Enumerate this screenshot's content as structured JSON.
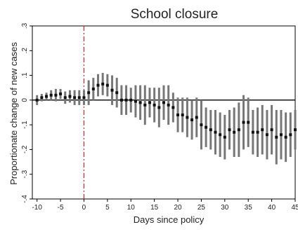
{
  "chart_data": {
    "type": "scatter",
    "title": "School closure",
    "xlabel": "Days since policy",
    "ylabel": "Proportionate change of new cases",
    "xlim": [
      -11,
      45
    ],
    "ylim": [
      -0.4,
      0.3
    ],
    "x_ticks": [
      -10,
      -5,
      0,
      5,
      10,
      15,
      20,
      25,
      30,
      35,
      40,
      45
    ],
    "y_ticks": [
      -0.4,
      -0.3,
      -0.2,
      -0.1,
      0,
      0.1,
      0.2,
      0.3
    ],
    "x_tick_labels": [
      "-10",
      "-5",
      "0",
      "5",
      "10",
      "15",
      "20",
      "25",
      "30",
      "35",
      "40",
      "45"
    ],
    "y_tick_labels": [
      "-.4",
      "-.3",
      "-.2",
      "-.1",
      "0",
      ".1",
      ".2",
      ".3"
    ],
    "policy_line_x": 0,
    "reference_line_y": 0,
    "grid": false,
    "colors": {
      "points": "#111111",
      "error_bars": "#777777",
      "policy_line": "#cc2222",
      "reference_line": "#000000"
    },
    "series": [
      {
        "x": [
          -10,
          -9,
          -8,
          -7,
          -6,
          -5,
          -4,
          -3,
          -2,
          -1,
          0,
          1,
          2,
          3,
          4,
          5,
          6,
          7,
          8,
          9,
          10,
          11,
          12,
          13,
          14,
          15,
          16,
          17,
          18,
          19,
          20,
          21,
          22,
          23,
          24,
          25,
          26,
          27,
          28,
          29,
          30,
          31,
          32,
          33,
          34,
          35,
          36,
          37,
          38,
          39,
          40,
          41,
          42,
          43,
          44,
          45
        ],
        "y": [
          0.0,
          0.01,
          0.015,
          0.02,
          0.02,
          0.025,
          0.01,
          0.015,
          0.01,
          0.01,
          0.01,
          0.03,
          0.045,
          0.06,
          0.065,
          0.06,
          0.04,
          0.03,
          0.0,
          0.0,
          0.0,
          -0.005,
          -0.01,
          -0.02,
          -0.01,
          -0.02,
          -0.03,
          -0.01,
          -0.02,
          -0.03,
          -0.06,
          -0.06,
          -0.07,
          -0.08,
          -0.07,
          -0.1,
          -0.11,
          -0.12,
          -0.13,
          -0.14,
          -0.15,
          -0.12,
          -0.13,
          -0.12,
          -0.09,
          -0.09,
          -0.13,
          -0.13,
          -0.12,
          -0.14,
          -0.12,
          -0.15,
          -0.14,
          -0.15,
          -0.14,
          -0.12
        ],
        "lower": [
          -0.02,
          -0.005,
          0.0,
          0.0,
          -0.005,
          0.005,
          -0.015,
          -0.01,
          -0.02,
          -0.02,
          -0.02,
          -0.02,
          0.0,
          0.015,
          0.02,
          0.015,
          -0.02,
          -0.03,
          -0.06,
          -0.06,
          -0.05,
          -0.07,
          -0.08,
          -0.1,
          -0.07,
          -0.09,
          -0.11,
          -0.08,
          -0.1,
          -0.09,
          -0.13,
          -0.13,
          -0.15,
          -0.16,
          -0.15,
          -0.2,
          -0.19,
          -0.2,
          -0.22,
          -0.23,
          -0.24,
          -0.2,
          -0.23,
          -0.23,
          -0.2,
          -0.19,
          -0.22,
          -0.23,
          -0.22,
          -0.24,
          -0.22,
          -0.26,
          -0.24,
          -0.25,
          -0.23,
          -0.2
        ],
        "upper": [
          0.02,
          0.025,
          0.03,
          0.04,
          0.045,
          0.045,
          0.035,
          0.04,
          0.04,
          0.04,
          0.04,
          0.08,
          0.09,
          0.105,
          0.11,
          0.105,
          0.1,
          0.09,
          0.06,
          0.06,
          0.05,
          0.06,
          0.06,
          0.06,
          0.05,
          0.05,
          0.05,
          0.06,
          0.06,
          0.03,
          0.01,
          0.01,
          0.01,
          0.0,
          0.01,
          0.0,
          -0.03,
          -0.04,
          -0.04,
          -0.05,
          -0.06,
          -0.04,
          -0.03,
          -0.01,
          0.02,
          0.01,
          -0.04,
          -0.03,
          -0.02,
          -0.04,
          -0.02,
          -0.04,
          -0.04,
          -0.05,
          -0.05,
          -0.04
        ]
      }
    ]
  }
}
